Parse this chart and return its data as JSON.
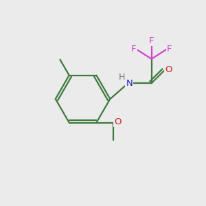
{
  "background_color": "#ebebeb",
  "bond_color": "#3d7a3d",
  "atom_colors": {
    "F": "#cc44cc",
    "O": "#cc2222",
    "N": "#2222cc",
    "H": "#777777",
    "C": "#3d7a3d"
  },
  "figsize": [
    3.0,
    3.0
  ],
  "dpi": 100
}
